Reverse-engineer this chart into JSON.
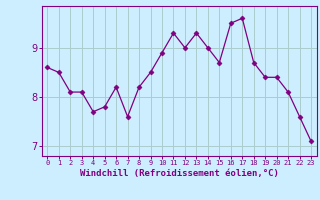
{
  "x": [
    0,
    1,
    2,
    3,
    4,
    5,
    6,
    7,
    8,
    9,
    10,
    11,
    12,
    13,
    14,
    15,
    16,
    17,
    18,
    19,
    20,
    21,
    22,
    23
  ],
  "y": [
    8.6,
    8.5,
    8.1,
    8.1,
    7.7,
    7.8,
    8.2,
    7.6,
    8.2,
    8.5,
    8.9,
    9.3,
    9.0,
    9.3,
    9.0,
    8.7,
    9.5,
    9.6,
    8.7,
    8.4,
    8.4,
    8.1,
    7.6,
    7.1
  ],
  "line_color": "#800080",
  "marker_color": "#800080",
  "bg_color": "#cceeff",
  "grid_color": "#aacccc",
  "axis_color": "#800080",
  "tick_color": "#800080",
  "xlabel": "Windchill (Refroidissement éolien,°C)",
  "ylim": [
    6.8,
    9.85
  ],
  "yticks": [
    7,
    8,
    9
  ],
  "font_color": "#800080"
}
